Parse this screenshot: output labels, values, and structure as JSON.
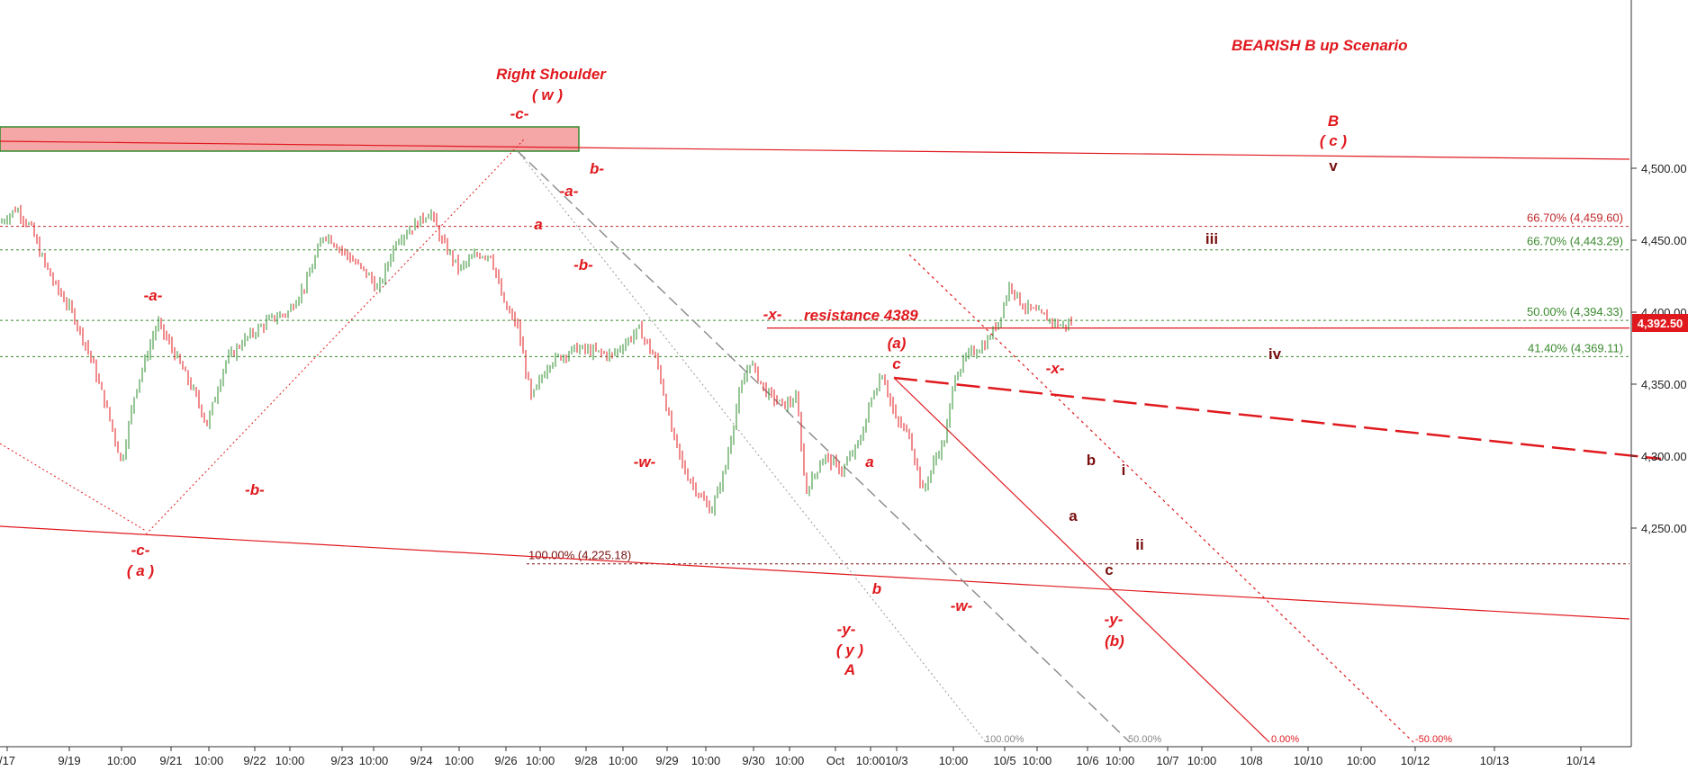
{
  "chart_data": {
    "type": "candlestick",
    "title": "BEARISH  B up Scenario",
    "ylim": [
      4200,
      4525
    ],
    "y_ticks": [
      {
        "value": 4250,
        "label": "4,250.00"
      },
      {
        "value": 4300,
        "label": "4,300.00"
      },
      {
        "value": 4350,
        "label": "4,350.00"
      },
      {
        "value": 4400,
        "label": "4,400.00"
      },
      {
        "value": 4450,
        "label": "4,450.00"
      },
      {
        "value": 4500,
        "label": "4,500.00"
      }
    ],
    "x_ticks": [
      "/17",
      "9/19",
      "10:00",
      "9/21",
      "10:00",
      "9/22",
      "10:00",
      "9/23",
      "10:00",
      "9/24",
      "10:00",
      "9/26",
      "10:00",
      "9/28",
      "10:00",
      "9/29",
      "10:00",
      "9/30",
      "10:00",
      "Oct",
      "10:00",
      "10/3",
      "10:00",
      "10/5",
      "10:00",
      "10/6",
      "10:00",
      "10/7",
      "10:00",
      "10/8",
      "10/10",
      "10:00",
      "10/12",
      "10/13",
      "10/14"
    ],
    "last_price": {
      "value": 4392.5,
      "label": "4,392.50"
    },
    "price_path": [
      [
        0,
        4462
      ],
      [
        18,
        4472
      ],
      [
        35,
        4458
      ],
      [
        45,
        4440
      ],
      [
        60,
        4420
      ],
      [
        80,
        4400
      ],
      [
        100,
        4370
      ],
      [
        120,
        4330
      ],
      [
        135,
        4295
      ],
      [
        150,
        4345
      ],
      [
        175,
        4393
      ],
      [
        195,
        4370
      ],
      [
        215,
        4345
      ],
      [
        230,
        4322
      ],
      [
        250,
        4365
      ],
      [
        270,
        4380
      ],
      [
        300,
        4395
      ],
      [
        320,
        4400
      ],
      [
        340,
        4420
      ],
      [
        360,
        4455
      ],
      [
        385,
        4440
      ],
      [
        410,
        4425
      ],
      [
        420,
        4415
      ],
      [
        440,
        4450
      ],
      [
        460,
        4460
      ],
      [
        478,
        4470
      ],
      [
        490,
        4450
      ],
      [
        510,
        4430
      ],
      [
        530,
        4440
      ],
      [
        545,
        4440
      ],
      [
        560,
        4405
      ],
      [
        575,
        4390
      ],
      [
        590,
        4340
      ],
      [
        610,
        4365
      ],
      [
        640,
        4375
      ],
      [
        680,
        4370
      ],
      [
        710,
        4388
      ],
      [
        730,
        4365
      ],
      [
        745,
        4320
      ],
      [
        760,
        4290
      ],
      [
        780,
        4270
      ],
      [
        790,
        4262
      ],
      [
        805,
        4290
      ],
      [
        820,
        4340
      ],
      [
        833,
        4366
      ],
      [
        850,
        4345
      ],
      [
        870,
        4335
      ],
      [
        885,
        4340
      ],
      [
        895,
        4275
      ],
      [
        915,
        4300
      ],
      [
        935,
        4290
      ],
      [
        955,
        4310
      ],
      [
        968,
        4340
      ],
      [
        980,
        4358
      ],
      [
        995,
        4325
      ],
      [
        1010,
        4315
      ],
      [
        1025,
        4275
      ],
      [
        1040,
        4300
      ],
      [
        1050,
        4312
      ],
      [
        1060,
        4355
      ],
      [
        1075,
        4370
      ],
      [
        1095,
        4378
      ],
      [
        1110,
        4395
      ],
      [
        1122,
        4420
      ],
      [
        1135,
        4405
      ],
      [
        1150,
        4400
      ],
      [
        1165,
        4395
      ],
      [
        1180,
        4390
      ],
      [
        1190,
        4393
      ]
    ],
    "levels": [
      {
        "label": "66.70% (4,459.60)",
        "value": 4459.6,
        "color": "#c0292b"
      },
      {
        "label": "66.70% (4,443.29)",
        "value": 4443.29,
        "color": "#3a8a2e"
      },
      {
        "label": "50.00% (4,394.33)",
        "value": 4394.33,
        "color": "#3a8a2e"
      },
      {
        "label": "41.40% (4,369.11)",
        "value": 4369.11,
        "color": "#3a8a2e"
      },
      {
        "label": "100.00% (4,225.18)",
        "value": 4225.18,
        "color": "#7a1010"
      }
    ],
    "resistance": {
      "label": "resistance 4389",
      "value": 4389
    },
    "channel_labels": [
      "100.00%",
      "50.00%",
      "0.00%",
      "-50.00%"
    ],
    "annotations": [
      {
        "text": "Right Shoulder",
        "style": "wave"
      },
      {
        "text": "( w )",
        "style": "wave"
      },
      {
        "text": "-c-",
        "style": "wave"
      },
      {
        "text": "b-",
        "style": "wave"
      },
      {
        "text": "-a-",
        "style": "wave"
      },
      {
        "text": "a",
        "style": "wave"
      },
      {
        "text": "-b-",
        "style": "wave"
      },
      {
        "text": "-a-",
        "style": "wave"
      },
      {
        "text": "-b-",
        "style": "wave"
      },
      {
        "text": "-c-",
        "style": "wave"
      },
      {
        "text": "( a )",
        "style": "wave"
      },
      {
        "text": "-w-",
        "style": "wave"
      },
      {
        "text": "-x-",
        "style": "wave"
      },
      {
        "text": "(a)",
        "style": "wave"
      },
      {
        "text": "c",
        "style": "wave"
      },
      {
        "text": "a",
        "style": "wave"
      },
      {
        "text": "b",
        "style": "wave"
      },
      {
        "text": "-y-",
        "style": "wave"
      },
      {
        "text": "( y )",
        "style": "wave"
      },
      {
        "text": "A",
        "style": "wave"
      },
      {
        "text": "-w-",
        "style": "wave"
      },
      {
        "text": "-x-",
        "style": "wave"
      },
      {
        "text": "b",
        "style": "dark"
      },
      {
        "text": "a",
        "style": "dark"
      },
      {
        "text": "c",
        "style": "dark"
      },
      {
        "text": "-y-",
        "style": "wave"
      },
      {
        "text": "(b)",
        "style": "wave"
      },
      {
        "text": "i",
        "style": "dark"
      },
      {
        "text": "ii",
        "style": "dark"
      },
      {
        "text": "iii",
        "style": "dark"
      },
      {
        "text": "iv",
        "style": "dark"
      },
      {
        "text": "B",
        "style": "wave"
      },
      {
        "text": "( c )",
        "style": "wave"
      },
      {
        "text": "v",
        "style": "dark"
      }
    ]
  },
  "colors": {
    "up": "#2e8b2e",
    "down": "#e0191e",
    "accent": "#e0191e",
    "fib_green": "#3a8a2e",
    "fib_dark": "#7a1010",
    "zone_fill": "#f5a6a6"
  }
}
